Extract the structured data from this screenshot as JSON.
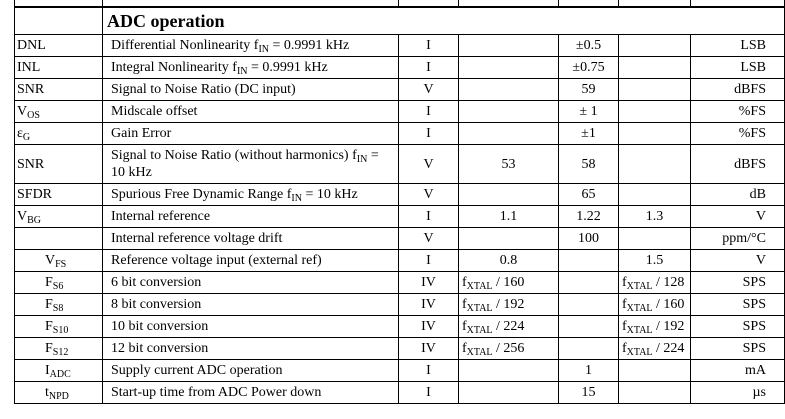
{
  "section_title": "ADC operation",
  "rows": [
    {
      "sym": "DNL",
      "sub": "",
      "pad": false,
      "param": "Differential Nonlinearity  f",
      "param_sub": "IN",
      "param_tail": " = 0.9991 kHz",
      "test": "I",
      "min": "",
      "typ": "±0.5",
      "max": "",
      "unit": "LSB"
    },
    {
      "sym": "INL",
      "sub": "",
      "pad": false,
      "param": "Integral Nonlinearity f",
      "param_sub": "IN",
      "param_tail": " = 0.9991 kHz",
      "test": "I",
      "min": "",
      "typ": "±0.75",
      "max": "",
      "unit": "LSB"
    },
    {
      "sym": "SNR",
      "sub": "",
      "pad": false,
      "param": "Signal to Noise Ratio (DC input)",
      "param_sub": "",
      "param_tail": "",
      "test": "V",
      "min": "",
      "typ": "59",
      "max": "",
      "unit": "dBFS"
    },
    {
      "sym": "V",
      "sub": "OS",
      "pad": false,
      "param": "Midscale offset",
      "param_sub": "",
      "param_tail": "",
      "test": "I",
      "min": "",
      "typ": "± 1",
      "max": "",
      "unit": "%FS"
    },
    {
      "sym": "ε",
      "sub": "G",
      "pad": false,
      "param": "Gain Error",
      "param_sub": "",
      "param_tail": "",
      "test": "I",
      "min": "",
      "typ": "±1",
      "max": "",
      "unit": "%FS"
    },
    {
      "sym": "SNR",
      "sub": "",
      "pad": false,
      "param": "Signal to Noise Ratio (without harmonics)  f",
      "param_sub": "IN",
      "param_tail": " = 10 kHz",
      "test": "V",
      "min": "53",
      "typ": "58",
      "max": "",
      "unit": "dBFS",
      "tall": true
    },
    {
      "sym": "SFDR",
      "sub": "",
      "pad": false,
      "param": "Spurious Free Dynamic Range f",
      "param_sub": "IN",
      "param_tail": " = 10 kHz",
      "test": "V",
      "min": "",
      "typ": "65",
      "max": "",
      "unit": "dB"
    },
    {
      "sym": "V",
      "sub": "BG",
      "pad": false,
      "param": "Internal reference",
      "param_sub": "",
      "param_tail": "",
      "test": "I",
      "min": "1.1",
      "typ": "1.22",
      "max": "1.3",
      "unit": "V"
    },
    {
      "sym": "",
      "sub": "",
      "pad": false,
      "param": "Internal reference voltage drift",
      "param_sub": "",
      "param_tail": "",
      "test": "V",
      "min": "",
      "typ": "100",
      "max": "",
      "unit": "ppm/°C"
    },
    {
      "sym": "V",
      "sub": "FS",
      "pad": true,
      "param": "Reference voltage input (external ref)",
      "param_sub": "",
      "param_tail": "",
      "test": "I",
      "min": "0.8",
      "typ": "",
      "max": "1.5",
      "unit": "V"
    },
    {
      "sym": "F",
      "sub": "S6",
      "pad": true,
      "param": "6 bit conversion",
      "param_sub": "",
      "param_tail": "",
      "test": "IV",
      "min": "f",
      "min_sub": "XTAL",
      "min_tail": " / 160",
      "typ": "",
      "max": "f",
      "max_sub": "XTAL",
      "max_tail": " / 128",
      "unit": "SPS"
    },
    {
      "sym": "F",
      "sub": "S8",
      "pad": true,
      "param": "8 bit conversion",
      "param_sub": "",
      "param_tail": "",
      "test": "IV",
      "min": "f",
      "min_sub": "XTAL",
      "min_tail": " / 192",
      "typ": "",
      "max": "f",
      "max_sub": "XTAL",
      "max_tail": " / 160",
      "unit": "SPS"
    },
    {
      "sym": "F",
      "sub": "S10",
      "pad": true,
      "param": "10 bit conversion",
      "param_sub": "",
      "param_tail": "",
      "test": "IV",
      "min": "f",
      "min_sub": "XTAL",
      "min_tail": " / 224",
      "typ": "",
      "max": "f",
      "max_sub": "XTAL",
      "max_tail": " / 192",
      "unit": "SPS"
    },
    {
      "sym": "F",
      "sub": "S12",
      "pad": true,
      "param": "12 bit conversion",
      "param_sub": "",
      "param_tail": "",
      "test": "IV",
      "min": "f",
      "min_sub": "XTAL",
      "min_tail": " / 256",
      "typ": "",
      "max": "f",
      "max_sub": "XTAL",
      "max_tail": " / 224",
      "unit": "SPS"
    },
    {
      "sym": "I",
      "sub": "ADC",
      "pad": true,
      "param": "Supply current ADC operation",
      "param_sub": "",
      "param_tail": "",
      "test": "I",
      "min": "",
      "typ": "1",
      "max": "",
      "unit": "mA"
    },
    {
      "sym": "t",
      "sub": "NPD",
      "pad": true,
      "param": "Start-up time from ADC Power down",
      "param_sub": "",
      "param_tail": "",
      "test": "I",
      "min": "",
      "typ": "15",
      "max": "",
      "unit": "µs"
    }
  ]
}
